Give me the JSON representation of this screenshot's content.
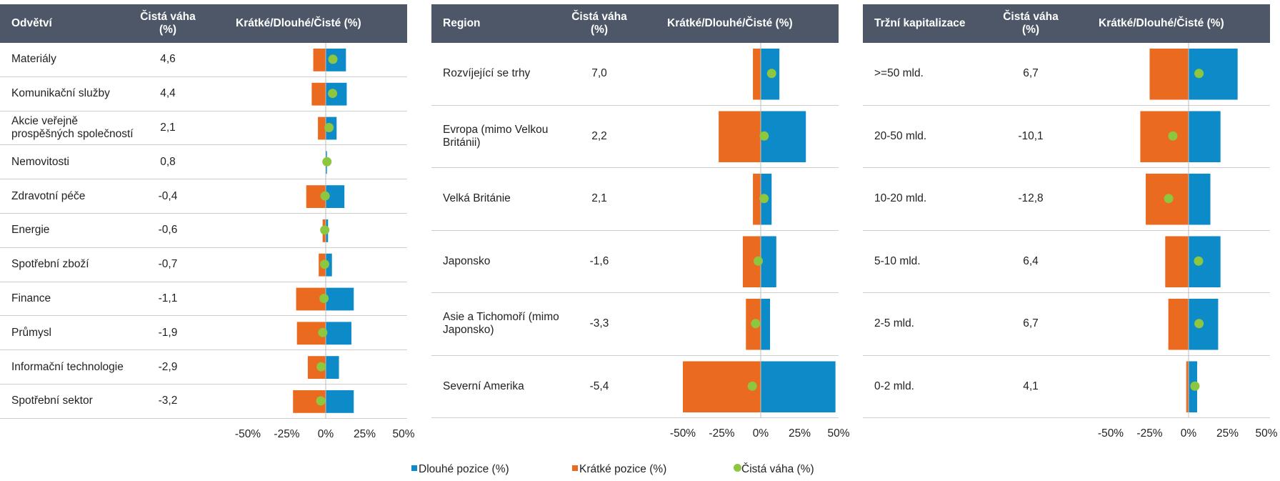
{
  "colors": {
    "header_bg": "#4d5767",
    "long": "#0d8ac8",
    "short": "#ea6a1f",
    "net": "#8dc63f",
    "axis": "#bdbdbd"
  },
  "legend": {
    "long": "Dlouhé pozice (%)",
    "short": "Krátké pozice (%)",
    "net": "Čistá váha (%)"
  },
  "panels": [
    {
      "col1": "Odvětví",
      "col2": "Čistá váha\n(%)",
      "col3": "Krátké/Dlouhé/Čisté (%)",
      "ticks": [
        "-50%",
        "-25%",
        "0%",
        "25%",
        "50%"
      ]
    },
    {
      "col1": "Region",
      "col2": "Čistá váha\n(%)",
      "col3": "Krátké/Dlouhé/Čisté (%)",
      "ticks": [
        "-50%",
        "-25%",
        "0%",
        "25%",
        "50%"
      ]
    },
    {
      "col1": "Tržní kapitalizace",
      "col2": "Čistá váha\n(%)",
      "col3": "Krátké/Dlouhé/Čisté (%)",
      "ticks": [
        "-50%",
        "-25%",
        "0%",
        "25%",
        "50%"
      ]
    }
  ],
  "chart_data": [
    {
      "type": "bar",
      "xlim": [
        -50,
        50
      ],
      "categories": [
        "Materiály",
        "Komunikační služby",
        "Akcie veřejně\nprospěšných společností",
        "Nemovitosti",
        "Zdravotní péče",
        "Energie",
        "Spotřební zboží",
        "Finance",
        "Průmysl",
        "Informační technologie",
        "Spotřební sektor"
      ],
      "net_labels": [
        "4,6",
        "4,4",
        "2,1",
        "0,8",
        "-0,4",
        "-0,6",
        "-0,7",
        "-1,1",
        "-1,9",
        "-2,9",
        "-3,2"
      ],
      "series": [
        {
          "name": "Dlouhé pozice (%)",
          "values": [
            13,
            13.5,
            7,
            0.8,
            12,
            1.5,
            4,
            18,
            16.5,
            8.5,
            18
          ]
        },
        {
          "name": "Krátké pozice (%)",
          "values": [
            -8,
            -9,
            -5,
            0,
            -12.5,
            -2,
            -4.5,
            -19,
            -18.5,
            -11.5,
            -21
          ]
        },
        {
          "name": "Čistá váha (%)",
          "values": [
            4.6,
            4.4,
            2.1,
            0.8,
            -0.4,
            -0.6,
            -0.7,
            -1.1,
            -1.9,
            -2.9,
            -3.2
          ]
        }
      ]
    },
    {
      "type": "bar",
      "xlim": [
        -50,
        50
      ],
      "categories": [
        "Rozvíjející se trhy",
        "Evropa (mimo Velkou\nBritánii)",
        "Velká Británie",
        "Japonsko",
        "Asie a Tichomoří (mimo\nJaponsko)",
        "Severní Amerika"
      ],
      "net_labels": [
        "7,0",
        "2,2",
        "2,1",
        "-1,6",
        "-3,3",
        "-5,4"
      ],
      "series": [
        {
          "name": "Dlouhé pozice (%)",
          "values": [
            12,
            29,
            7,
            10,
            6,
            48
          ]
        },
        {
          "name": "Krátké pozice (%)",
          "values": [
            -5,
            -27,
            -5,
            -11.5,
            -9.5,
            -50
          ]
        },
        {
          "name": "Čistá váha (%)",
          "values": [
            7.0,
            2.2,
            2.1,
            -1.6,
            -3.3,
            -5.4
          ]
        }
      ]
    },
    {
      "type": "bar",
      "xlim": [
        -50,
        50
      ],
      "categories": [
        ">=50 mld.",
        "20-50 mld.",
        "10-20 mld.",
        "5-10 mld.",
        "2-5 mld.",
        "0-2 mld."
      ],
      "net_labels": [
        "6,7",
        "-10,1",
        "-12,8",
        "6,4",
        "6,7",
        "4,1"
      ],
      "series": [
        {
          "name": "Dlouhé pozice (%)",
          "values": [
            31.5,
            20.5,
            14,
            20.5,
            19,
            5.5
          ]
        },
        {
          "name": "Krátké pozice (%)",
          "values": [
            -25,
            -31,
            -27.5,
            -15,
            -13,
            -1.5
          ]
        },
        {
          "name": "Čistá váha (%)",
          "values": [
            6.7,
            -10.1,
            -12.8,
            6.4,
            6.7,
            4.1
          ]
        }
      ]
    }
  ]
}
